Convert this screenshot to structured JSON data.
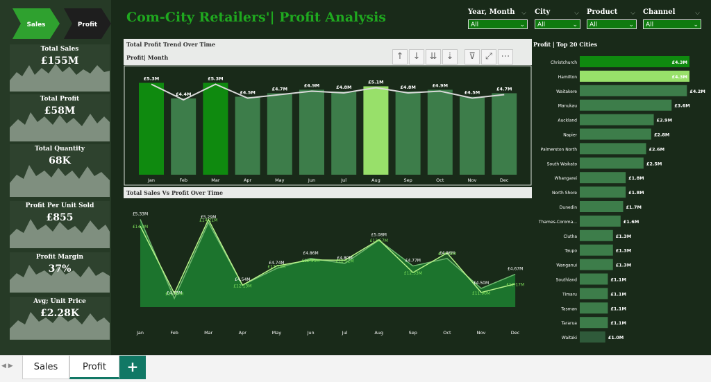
{
  "nav": {
    "sales_label": "Sales",
    "profit_label": "Profit"
  },
  "page_title": "Com-City Retailers'| Profit Analysis",
  "kpis": [
    {
      "title": "Total Sales",
      "value": "£155M"
    },
    {
      "title": "Total Profit",
      "value": "£58M"
    },
    {
      "title": "Total Quantity",
      "value": "68K"
    },
    {
      "title": "Profit Per Unit Sold",
      "value": "£855"
    },
    {
      "title": "Profit Margin",
      "value": "37%"
    },
    {
      "title": "Avg; Unit Price",
      "value": "£2.28K"
    }
  ],
  "slicers": [
    {
      "label": "Year, Month",
      "value": "All"
    },
    {
      "label": "City",
      "value": "All"
    },
    {
      "label": "Product",
      "value": "All"
    },
    {
      "label": "Channel",
      "value": "All"
    }
  ],
  "profit_trend": {
    "title": "Total Profit Trend Over Time",
    "subtitle": "Profit| Month",
    "months": [
      "Jan",
      "Feb",
      "Mar",
      "Apr",
      "May",
      "Jun",
      "Jul",
      "Aug",
      "Sep",
      "Oct",
      "Nov",
      "Dec"
    ],
    "values": [
      5.3,
      4.4,
      5.3,
      4.5,
      4.7,
      4.9,
      4.8,
      5.1,
      4.8,
      4.9,
      4.5,
      4.7
    ],
    "labels": [
      "£5.3M",
      "£4.4M",
      "£5.3M",
      "£4.5M",
      "£4.7M",
      "£4.9M",
      "£4.8M",
      "£5.1M",
      "£4.8M",
      "£4.9M",
      "£4.5M",
      "£4.7M"
    ],
    "highlight": [
      0,
      2,
      7
    ]
  },
  "sales_vs_profit": {
    "title": "Total Sales Vs Profit Over Time",
    "months": [
      "Jan",
      "Feb",
      "Mar",
      "Apr",
      "May",
      "Jun",
      "Jul",
      "Aug",
      "Sep",
      "Oct",
      "Nov",
      "Dec"
    ],
    "sales": [
      14.0,
      11.87,
      14.21,
      12.13,
      12.74,
      12.93,
      12.92,
      13.57,
      12.53,
      13.15,
      11.9,
      12.17
    ],
    "sales_labels": [
      "£14.0M",
      "£11.87M",
      "£14.21M",
      "£12.13M",
      "£12.74M",
      "£12.93M",
      "£12.92M",
      "£13.57M",
      "£12.53M",
      "£13.15M",
      "£11.90M",
      "£12.17M"
    ],
    "profit": [
      5.33,
      4.38,
      5.29,
      4.54,
      4.74,
      4.86,
      4.8,
      5.08,
      4.77,
      4.86,
      4.5,
      4.67
    ],
    "profit_labels": [
      "£5.33M",
      "£4.38M",
      "£5.29M",
      "£4.54M",
      "£4.74M",
      "£4.86M",
      "£4.80M",
      "£5.08M",
      "£4.77M",
      "£4.86M",
      "£4.50M",
      "£4.67M"
    ]
  },
  "top_cities": {
    "title": "Profit | Top 20 Cities",
    "cities": [
      "Christchurch",
      "Hamilton",
      "Waitakere",
      "Manukau",
      "Auckland",
      "Napier",
      "Palmerston North",
      "South Waikato",
      "Whangarei",
      "North Shore",
      "Dunedin",
      "Thames-Coroma...",
      "Clutha",
      "Taupo",
      "Wanganui",
      "Southland",
      "Timaru",
      "Tasman",
      "Tararua",
      "Waitaki"
    ],
    "values": [
      4.3,
      4.3,
      4.2,
      3.6,
      2.9,
      2.8,
      2.6,
      2.5,
      1.8,
      1.8,
      1.7,
      1.6,
      1.3,
      1.3,
      1.3,
      1.1,
      1.1,
      1.1,
      1.1,
      1.0
    ],
    "labels": [
      "£4.3M",
      "£4.3M",
      "£4.2M",
      "£3.6M",
      "£2.9M",
      "£2.8M",
      "£2.6M",
      "£2.5M",
      "£1.8M",
      "£1.8M",
      "£1.7M",
      "£1.6M",
      "£1.3M",
      "£1.3M",
      "£1.3M",
      "£1.1M",
      "£1.1M",
      "£1.1M",
      "£1.1M",
      "£1.0M"
    ]
  },
  "tabs": [
    {
      "label": "Sales"
    },
    {
      "label": "Profit"
    }
  ],
  "add_tab_label": "+",
  "colors": {
    "accent": "#0f8a0f",
    "highlight": "#98e06a",
    "bar": "#3d7d4a",
    "title": "#1fa81f"
  },
  "chart_data": [
    {
      "type": "bar",
      "title": "Total Profit Trend Over Time",
      "categories": [
        "Jan",
        "Feb",
        "Mar",
        "Apr",
        "May",
        "Jun",
        "Jul",
        "Aug",
        "Sep",
        "Oct",
        "Nov",
        "Dec"
      ],
      "series": [
        {
          "values": [
            5.3,
            4.4,
            5.3,
            4.5,
            4.7,
            4.9,
            4.8,
            5.1,
            4.8,
            4.9,
            4.5,
            4.7
          ]
        }
      ]
    },
    {
      "type": "area",
      "title": "Total Sales Vs Profit Over Time",
      "categories": [
        "Jan",
        "Feb",
        "Mar",
        "Apr",
        "May",
        "Jun",
        "Jul",
        "Aug",
        "Sep",
        "Oct",
        "Nov",
        "Dec"
      ],
      "series": [
        {
          "values": [
            14.0,
            11.87,
            14.21,
            12.13,
            12.74,
            12.93,
            12.92,
            13.57,
            12.53,
            13.15,
            11.9,
            12.17
          ]
        },
        {
          "values": [
            5.33,
            4.38,
            5.29,
            4.54,
            4.74,
            4.86,
            4.8,
            5.08,
            4.77,
            4.86,
            4.5,
            4.67
          ]
        }
      ]
    },
    {
      "type": "bar",
      "title": "Profit | Top 20 Cities",
      "categories": [
        "Christchurch",
        "Hamilton",
        "Waitakere",
        "Manukau",
        "Auckland",
        "Napier",
        "Palmerston North",
        "South Waikato",
        "Whangarei",
        "North Shore",
        "Dunedin",
        "Thames-Coroma...",
        "Clutha",
        "Taupo",
        "Wanganui",
        "Southland",
        "Timaru",
        "Tasman",
        "Tararua",
        "Waitaki"
      ],
      "series": [
        {
          "values": [
            4.3,
            4.3,
            4.2,
            3.6,
            2.9,
            2.8,
            2.6,
            2.5,
            1.8,
            1.8,
            1.7,
            1.6,
            1.3,
            1.3,
            1.3,
            1.1,
            1.1,
            1.1,
            1.1,
            1.0
          ]
        }
      ]
    }
  ]
}
